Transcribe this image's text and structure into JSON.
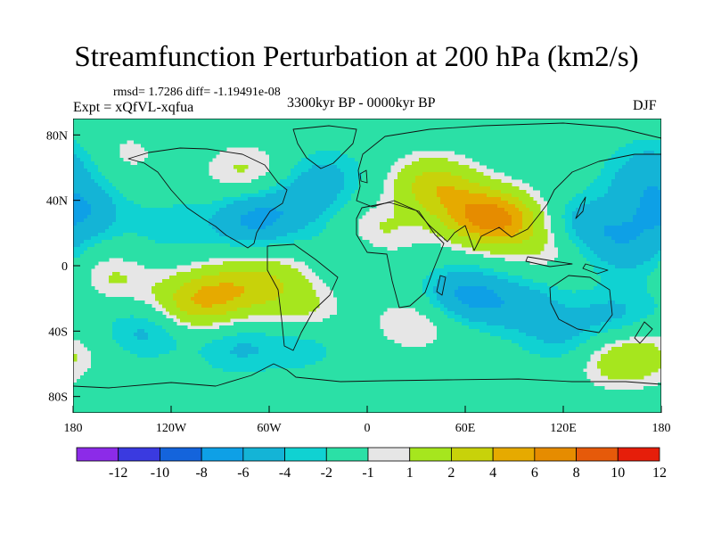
{
  "title": "Streamfunction Perturbation at 200 hPa (km2/s)",
  "stats": "rmsd= 1.7286 diff= -1.19491e-08",
  "period": "3300kyr BP - 0000kyr BP",
  "experiment": "Expt = xQfVL-xqfua",
  "season": "DJF",
  "map": {
    "projection": "cylindrical equidistant",
    "lon_range": [
      -180,
      180
    ],
    "lat_range": [
      -90,
      90
    ],
    "y_ticks": [
      {
        "lat": 80,
        "label": "80N"
      },
      {
        "lat": 40,
        "label": "40N"
      },
      {
        "lat": 0,
        "label": "0"
      },
      {
        "lat": -40,
        "label": "40S"
      },
      {
        "lat": -80,
        "label": "80S"
      }
    ],
    "x_ticks": [
      {
        "lon": -180,
        "label": "180"
      },
      {
        "lon": -120,
        "label": "120W"
      },
      {
        "lon": -60,
        "label": "60W"
      },
      {
        "lon": 0,
        "label": "0"
      },
      {
        "lon": 60,
        "label": "60E"
      },
      {
        "lon": 120,
        "label": "120E"
      },
      {
        "lon": 180,
        "label": "180"
      }
    ],
    "background_color": "#e6e6e6",
    "features": [
      {
        "lon": -150,
        "lat": 68,
        "value": 1.5
      },
      {
        "lon": -172,
        "lat": 34,
        "value": -2
      },
      {
        "lon": -120,
        "lat": 24,
        "value": -1.6
      },
      {
        "lon": -70,
        "lat": 28,
        "value": -4.2
      },
      {
        "lon": -40,
        "lat": 38,
        "value": -2.2
      },
      {
        "lon": -75,
        "lat": 58,
        "value": 2.3
      },
      {
        "lon": -25,
        "lat": 55,
        "value": -2.2
      },
      {
        "lon": -10,
        "lat": 10,
        "value": -1.6
      },
      {
        "lon": -170,
        "lat": -15,
        "value": -2
      },
      {
        "lon": -160,
        "lat": -10,
        "value": 3.5
      },
      {
        "lon": -105,
        "lat": -22,
        "value": 5.2
      },
      {
        "lon": -80,
        "lat": -14,
        "value": 3.8
      },
      {
        "lon": -55,
        "lat": -8,
        "value": 2.4
      },
      {
        "lon": -135,
        "lat": -40,
        "value": -2.4
      },
      {
        "lon": -80,
        "lat": -50,
        "value": -2.1
      },
      {
        "lon": -40,
        "lat": -48,
        "value": -1.8
      },
      {
        "lon": 5,
        "lat": 20,
        "value": 2.6
      },
      {
        "lon": 40,
        "lat": 50,
        "value": 4.6
      },
      {
        "lon": 80,
        "lat": 28,
        "value": 7.6
      },
      {
        "lon": 60,
        "lat": 35,
        "value": 3.4
      },
      {
        "lon": 110,
        "lat": 12,
        "value": 1.8
      },
      {
        "lon": 135,
        "lat": 25,
        "value": -3.2
      },
      {
        "lon": 160,
        "lat": 10,
        "value": -2.8
      },
      {
        "lon": 168,
        "lat": 50,
        "value": -2.2
      },
      {
        "lon": 180,
        "lat": 30,
        "value": -1.8
      },
      {
        "lon": 178,
        "lat": 65,
        "value": -1.8
      },
      {
        "lon": 60,
        "lat": -18,
        "value": -4.4
      },
      {
        "lon": 95,
        "lat": -25,
        "value": -2.8
      },
      {
        "lon": 30,
        "lat": -35,
        "value": 2.2
      },
      {
        "lon": 120,
        "lat": -45,
        "value": -2
      },
      {
        "lon": 150,
        "lat": -30,
        "value": -2.2
      },
      {
        "lon": 150,
        "lat": -58,
        "value": 2.3
      },
      {
        "lon": 170,
        "lat": -55,
        "value": 2
      },
      {
        "lon": -40,
        "lat": -28,
        "value": 2.2
      }
    ]
  },
  "colorbar": {
    "boundaries": [
      -12,
      -10,
      -8,
      -6,
      -4,
      -2,
      -1,
      1,
      2,
      4,
      6,
      8,
      10,
      12
    ],
    "tick_labels": [
      "-12",
      "-10",
      "-8",
      "-6",
      "-4",
      "-2",
      "-1",
      "1",
      "2",
      "4",
      "6",
      "8",
      "10",
      "12"
    ],
    "colors": [
      "#8c2be8",
      "#3a3ae0",
      "#1464dc",
      "#0ea0e6",
      "#14b4d6",
      "#10d2d2",
      "#2be0a6",
      "#e6e6e6",
      "#a6e61e",
      "#c8d20a",
      "#e6aa00",
      "#e68c00",
      "#e65a0a",
      "#e61e0a"
    ]
  }
}
